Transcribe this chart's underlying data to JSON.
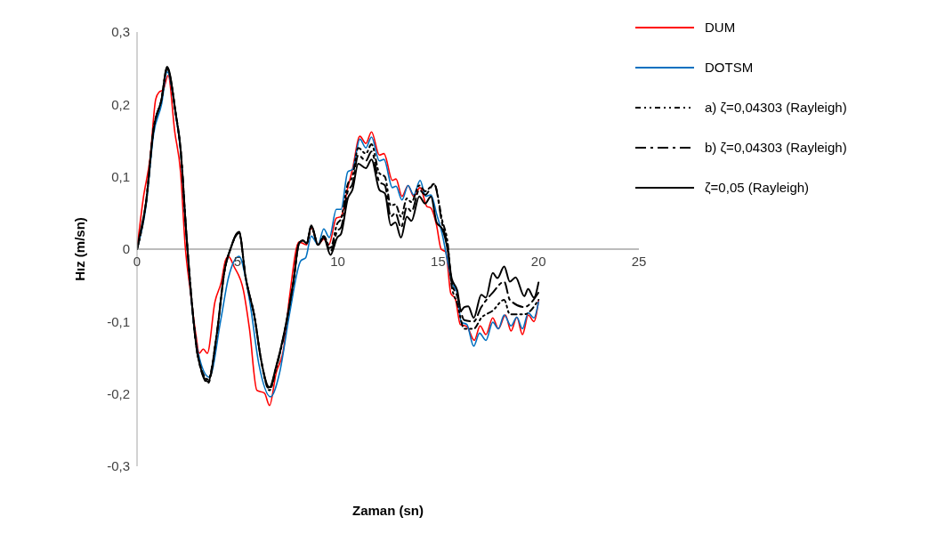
{
  "chart_data": {
    "type": "line",
    "xlabel": "Zaman (sn)",
    "ylabel": "Hız (m/sn)",
    "xlim": [
      0,
      25
    ],
    "xticks": [
      0,
      5,
      10,
      15,
      20,
      25
    ],
    "ylim": [
      -0.3,
      0.3
    ],
    "yticks": [
      {
        "value": -0.3,
        "label": "-0,3"
      },
      {
        "value": -0.2,
        "label": "-0,2"
      },
      {
        "value": -0.1,
        "label": "-0,1"
      },
      {
        "value": 0,
        "label": "0"
      },
      {
        "value": 0.1,
        "label": "0,1"
      },
      {
        "value": 0.2,
        "label": "0,2"
      },
      {
        "value": 0.3,
        "label": "0,3"
      }
    ],
    "legend": "top right",
    "marker": "none",
    "series": [
      {
        "name": "DUM",
        "color": "#ff0000",
        "line_style": "solid",
        "x": [
          0,
          0.31,
          0.65,
          0.93,
          1.1,
          1.3,
          1.55,
          1.88,
          2.17,
          2.4,
          2.65,
          2.93,
          3.1,
          3.3,
          3.5,
          3.88,
          4.2,
          4.4,
          4.55,
          4.83,
          5.3,
          5.6,
          5.97,
          6.35,
          6.6,
          6.93,
          7.3,
          7.6,
          8.07,
          8.45,
          8.68,
          9.02,
          9.3,
          9.55,
          9.93,
          10.16,
          10.5,
          10.73,
          11.1,
          11.4,
          11.68,
          12.07,
          12.3,
          12.72,
          12.9,
          13.2,
          13.5,
          13.78,
          14.1,
          14.44,
          14.63,
          14.92,
          15.15,
          15.38,
          15.63,
          15.86,
          16.1,
          16.43,
          16.8,
          17.09,
          17.38,
          17.72,
          18.0,
          18.35,
          18.63,
          18.92,
          19.2,
          19.49,
          19.77,
          20
        ],
        "values": [
          0,
          0.07,
          0.126,
          0.207,
          0.217,
          0.22,
          0.24,
          0.162,
          0.106,
          0.004,
          -0.057,
          -0.118,
          -0.144,
          -0.138,
          -0.144,
          -0.073,
          -0.045,
          -0.016,
          -0.01,
          -0.024,
          -0.057,
          -0.11,
          -0.195,
          -0.199,
          -0.216,
          -0.171,
          -0.138,
          -0.065,
          0.01,
          0.006,
          0.03,
          0.006,
          0.014,
          0.006,
          0.043,
          0.045,
          0.085,
          0.11,
          0.156,
          0.146,
          0.162,
          0.13,
          0.132,
          0.095,
          0.097,
          0.073,
          0.088,
          0.073,
          0.085,
          0.059,
          0.057,
          0.033,
          0,
          -0.004,
          -0.061,
          -0.069,
          -0.104,
          -0.107,
          -0.126,
          -0.106,
          -0.118,
          -0.095,
          -0.11,
          -0.091,
          -0.113,
          -0.094,
          -0.118,
          -0.091,
          -0.1,
          -0.071
        ]
      },
      {
        "name": "DOTSM",
        "color": "#0070c0",
        "line_style": "solid",
        "x": [
          0,
          0.45,
          0.83,
          1.22,
          1.5,
          1.93,
          2.17,
          2.45,
          2.74,
          3.02,
          3.6,
          4.17,
          4.55,
          5.08,
          5.6,
          6.07,
          6.65,
          7.1,
          7.6,
          8.16,
          8.4,
          8.68,
          9.02,
          9.3,
          9.58,
          9.93,
          10.16,
          10.5,
          10.73,
          11.1,
          11.4,
          11.68,
          12.07,
          12.3,
          12.72,
          12.9,
          13.2,
          13.5,
          13.78,
          14.1,
          14.38,
          14.64,
          14.92,
          15.2,
          15.49,
          15.67,
          15.95,
          16.15,
          16.43,
          16.77,
          17.06,
          17.38,
          17.72,
          18.0,
          18.29,
          18.63,
          18.92,
          19.2,
          19.49,
          19.77,
          20
        ],
        "values": [
          0,
          0.06,
          0.16,
          0.2,
          0.245,
          0.185,
          0.135,
          0.02,
          -0.08,
          -0.14,
          -0.177,
          -0.098,
          -0.04,
          -0.01,
          -0.07,
          -0.159,
          -0.204,
          -0.171,
          -0.089,
          -0.016,
          -0.012,
          0.018,
          0.006,
          0.028,
          0.016,
          0.055,
          0.055,
          0.107,
          0.11,
          0.152,
          0.14,
          0.155,
          0.122,
          0.124,
          0.085,
          0.087,
          0.068,
          0.088,
          0.075,
          0.095,
          0.073,
          0.075,
          0.049,
          0.021,
          -0.02,
          -0.045,
          -0.061,
          -0.101,
          -0.104,
          -0.134,
          -0.116,
          -0.126,
          -0.101,
          -0.11,
          -0.091,
          -0.106,
          -0.094,
          -0.11,
          -0.088,
          -0.095,
          -0.073
        ]
      },
      {
        "name": "a) ζ=0,04303 (Rayleigh)",
        "color": "#000000",
        "line_style": "dotted",
        "x": [
          0,
          0.45,
          0.83,
          1.22,
          1.5,
          1.93,
          2.17,
          2.45,
          2.74,
          3.02,
          3.54,
          3.97,
          4.37,
          4.65,
          5.08,
          5.4,
          5.88,
          6.16,
          6.6,
          6.93,
          7.4,
          7.79,
          8.07,
          8.26,
          8.45,
          8.68,
          9.02,
          9.3,
          9.64,
          9.97,
          10.16,
          10.5,
          10.73,
          11.02,
          11.4,
          11.68,
          12.07,
          12.35,
          12.64,
          12.87,
          13.15,
          13.44,
          13.67,
          14.06,
          14.35,
          14.8,
          15.2,
          15.49,
          15.67,
          15.95,
          16.3,
          16.77,
          17.15,
          17.72,
          18.29,
          18.57,
          19.29,
          20
        ],
        "values": [
          0,
          0.065,
          0.167,
          0.207,
          0.25,
          0.187,
          0.138,
          0.024,
          -0.077,
          -0.146,
          -0.18,
          -0.118,
          -0.028,
          0,
          0.022,
          -0.037,
          -0.098,
          -0.15,
          -0.195,
          -0.165,
          -0.108,
          -0.045,
          0.008,
          0.012,
          0.008,
          0.03,
          0.006,
          0.018,
          0.002,
          0.035,
          0.042,
          0.09,
          0.1,
          0.14,
          0.132,
          0.145,
          0.105,
          0.1,
          0.06,
          0.062,
          0.045,
          0.07,
          0.065,
          0.088,
          0.08,
          0.09,
          0.04,
          0.005,
          -0.05,
          -0.075,
          -0.11,
          -0.11,
          -0.095,
          -0.085,
          -0.07,
          -0.09,
          -0.09,
          -0.07
        ]
      },
      {
        "name": "b) ζ=0,04303 (Rayleigh)",
        "color": "#000000",
        "line_style": "dashed",
        "x": [
          0,
          0.45,
          0.83,
          1.22,
          1.5,
          1.93,
          2.17,
          2.45,
          2.74,
          3.02,
          3.54,
          3.97,
          4.37,
          4.65,
          5.08,
          5.4,
          5.88,
          6.16,
          6.6,
          6.93,
          7.4,
          7.79,
          8.07,
          8.26,
          8.45,
          8.68,
          9.02,
          9.3,
          9.64,
          9.97,
          10.16,
          10.5,
          10.73,
          11.02,
          11.4,
          11.68,
          12.07,
          12.35,
          12.64,
          12.87,
          13.15,
          13.44,
          13.67,
          14.06,
          14.35,
          14.8,
          15.2,
          15.49,
          15.67,
          15.95,
          16.3,
          16.77,
          17.15,
          17.72,
          18.29,
          18.57,
          19.29,
          20
        ],
        "values": [
          0,
          0.065,
          0.167,
          0.207,
          0.25,
          0.187,
          0.138,
          0.024,
          -0.077,
          -0.146,
          -0.185,
          -0.118,
          -0.028,
          0,
          0.024,
          -0.037,
          -0.098,
          -0.15,
          -0.193,
          -0.163,
          -0.107,
          -0.045,
          0.008,
          0.012,
          0.008,
          0.032,
          0.006,
          0.017,
          -0.003,
          0.025,
          0.03,
          0.08,
          0.09,
          0.13,
          0.122,
          0.135,
          0.093,
          0.088,
          0.045,
          0.05,
          0.03,
          0.058,
          0.052,
          0.082,
          0.075,
          0.09,
          0.035,
          0,
          -0.045,
          -0.065,
          -0.098,
          -0.1,
          -0.08,
          -0.06,
          -0.045,
          -0.07,
          -0.08,
          -0.06
        ]
      },
      {
        "name": "ζ=0,05 (Rayleigh)",
        "color": "#000000",
        "line_style": "solid",
        "x": [
          0,
          0.08,
          0.45,
          0.83,
          1.22,
          1.5,
          1.93,
          2.17,
          2.45,
          2.74,
          3.02,
          3.54,
          3.97,
          4.37,
          4.65,
          5.08,
          5.4,
          5.88,
          6.16,
          6.6,
          6.93,
          7.4,
          7.79,
          8.07,
          8.26,
          8.45,
          8.68,
          9.02,
          9.3,
          9.64,
          9.97,
          10.16,
          10.5,
          10.73,
          11.02,
          11.4,
          11.68,
          12.07,
          12.35,
          12.64,
          12.87,
          13.15,
          13.44,
          13.67,
          14.06,
          14.35,
          14.64,
          14.92,
          15.2,
          15.49,
          15.67,
          15.95,
          16.15,
          16.3,
          16.5,
          16.77,
          17.15,
          17.38,
          17.72,
          17.95,
          18.29,
          18.57,
          18.86,
          19.29,
          19.48,
          19.77,
          20
        ],
        "values": [
          0,
          0.012,
          0.065,
          0.167,
          0.207,
          0.252,
          0.187,
          0.138,
          0.024,
          -0.077,
          -0.146,
          -0.183,
          -0.118,
          -0.028,
          0,
          0.024,
          -0.037,
          -0.098,
          -0.15,
          -0.191,
          -0.162,
          -0.106,
          -0.045,
          0.008,
          0.012,
          0.008,
          0.033,
          0.006,
          0.016,
          -0.008,
          0.016,
          0.021,
          0.07,
          0.082,
          0.118,
          0.112,
          0.124,
          0.082,
          0.077,
          0.033,
          0.037,
          0.016,
          0.045,
          0.039,
          0.073,
          0.063,
          0.073,
          0.037,
          0.028,
          -0.004,
          -0.04,
          -0.057,
          -0.085,
          -0.08,
          -0.079,
          -0.095,
          -0.063,
          -0.067,
          -0.033,
          -0.04,
          -0.024,
          -0.045,
          -0.039,
          -0.065,
          -0.055,
          -0.067,
          -0.046
        ]
      }
    ]
  }
}
